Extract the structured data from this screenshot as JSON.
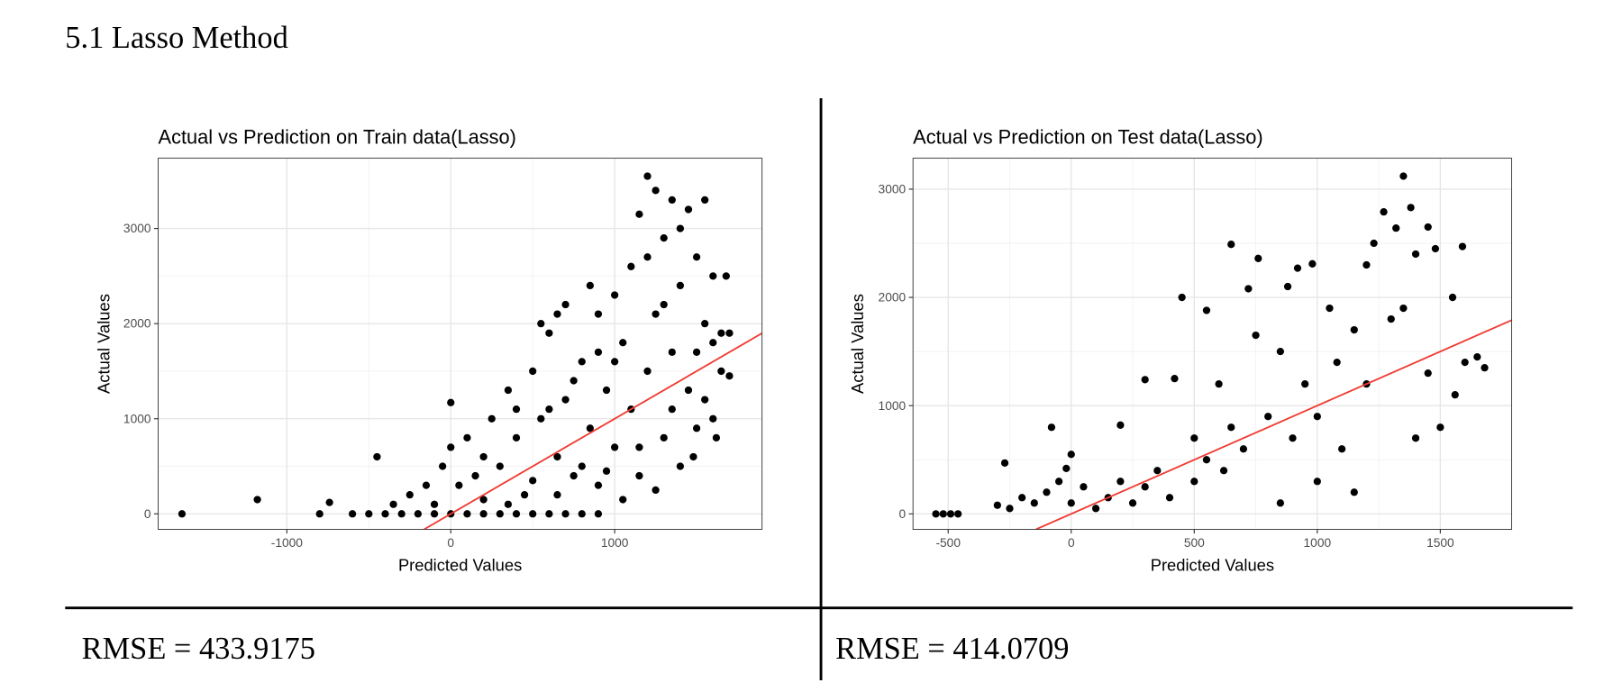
{
  "section_title": "5.1 Lasso Method",
  "chart_data": [
    {
      "type": "scatter",
      "title": "Actual vs Prediction on Train data(Lasso)",
      "x_label": "Predicted Values",
      "y_label": "Actual Values",
      "caption": "RMSE = 433.9175",
      "xlim": [
        -1785,
        1899
      ],
      "ylim": [
        -163,
        3739
      ],
      "xticks": [
        -1000,
        0,
        1000
      ],
      "yticks": [
        0,
        1000,
        2000,
        3000
      ],
      "grid": true,
      "series": [
        {
          "kind": "scatter",
          "color": "#000000",
          "x": [
            -1640,
            -1180,
            -800,
            -740,
            -450,
            0,
            -600,
            -500,
            -400,
            -300,
            -200,
            -100,
            0,
            100,
            200,
            300,
            400,
            500,
            600,
            700,
            800,
            900,
            -350,
            -250,
            -150,
            -50,
            0,
            50,
            100,
            150,
            200,
            250,
            300,
            350,
            400,
            450,
            500,
            550,
            600,
            650,
            700,
            700,
            750,
            800,
            850,
            850,
            900,
            900,
            950,
            1000,
            1000,
            1050,
            1100,
            1100,
            1150,
            1150,
            1200,
            1200,
            1250,
            1250,
            1300,
            1300,
            1350,
            1350,
            1400,
            1400,
            1450,
            1450,
            1500,
            1500,
            1550,
            1550,
            1600,
            1600,
            1650,
            1650,
            1700,
            1700,
            1680,
            1620,
            1480,
            1250,
            1050,
            -100,
            200,
            500,
            800,
            350,
            650,
            950,
            1150,
            1350,
            1550,
            1400,
            1200,
            1000,
            900,
            750,
            600,
            400,
            550,
            650,
            1300,
            1500,
            1600
          ],
          "values": [
            0,
            150,
            0,
            120,
            600,
            1170,
            0,
            0,
            0,
            0,
            0,
            0,
            0,
            0,
            0,
            0,
            0,
            0,
            0,
            0,
            0,
            0,
            100,
            200,
            300,
            500,
            700,
            300,
            800,
            400,
            600,
            1000,
            500,
            1300,
            800,
            200,
            1500,
            1000,
            1900,
            600,
            2200,
            1200,
            400,
            1600,
            2400,
            900,
            2100,
            300,
            1300,
            2300,
            700,
            1800,
            2600,
            1100,
            3150,
            400,
            3550,
            1500,
            3400,
            2100,
            2900,
            800,
            3300,
            1700,
            2400,
            500,
            3200,
            1300,
            2700,
            900,
            3300,
            2000,
            2500,
            1000,
            1900,
            1500,
            1450,
            1900,
            2500,
            800,
            600,
            250,
            150,
            100,
            150,
            350,
            500,
            100,
            200,
            450,
            700,
            1100,
            1200,
            3000,
            2700,
            1600,
            1700,
            1400,
            1100,
            1100,
            2000,
            2100,
            2200,
            1700,
            1800
          ]
        },
        {
          "kind": "line",
          "color": "#f03b32",
          "x": [
            -163,
            1899
          ],
          "values": [
            -163,
            1899
          ]
        }
      ]
    },
    {
      "type": "scatter",
      "title": "Actual vs Prediction on Test data(Lasso)",
      "x_label": "Predicted Values",
      "y_label": "Actual Values",
      "caption": "RMSE = 414.0709",
      "xlim": [
        -643,
        1790
      ],
      "ylim": [
        -143,
        3286
      ],
      "xticks": [
        -500,
        0,
        500,
        1000,
        1500
      ],
      "yticks": [
        0,
        1000,
        2000,
        3000
      ],
      "grid": true,
      "series": [
        {
          "kind": "scatter",
          "color": "#000000",
          "x": [
            -550,
            -520,
            -490,
            -460,
            -300,
            -270,
            -250,
            -200,
            -150,
            -100,
            -80,
            -50,
            0,
            -20,
            0,
            50,
            100,
            150,
            200,
            200,
            250,
            300,
            300,
            350,
            400,
            420,
            450,
            500,
            500,
            550,
            550,
            600,
            620,
            650,
            650,
            700,
            720,
            760,
            750,
            800,
            850,
            880,
            900,
            920,
            950,
            980,
            1000,
            1050,
            1080,
            1100,
            1150,
            1200,
            1200,
            1230,
            1270,
            1300,
            1320,
            1350,
            1350,
            1380,
            1400,
            1400,
            1450,
            1450,
            1480,
            1500,
            1550,
            1560,
            1590,
            1600,
            1650,
            1680,
            1000,
            1150,
            850
          ],
          "values": [
            0,
            0,
            0,
            0,
            80,
            470,
            50,
            150,
            100,
            200,
            800,
            300,
            550,
            420,
            100,
            250,
            50,
            150,
            820,
            300,
            100,
            1240,
            250,
            400,
            150,
            1250,
            2000,
            700,
            300,
            1880,
            500,
            1200,
            400,
            2490,
            800,
            600,
            2080,
            2360,
            1650,
            900,
            1500,
            2100,
            700,
            2270,
            1200,
            2310,
            900,
            1900,
            1400,
            600,
            1700,
            2300,
            1200,
            2500,
            2790,
            1800,
            2640,
            3120,
            1900,
            2830,
            2400,
            700,
            2650,
            1300,
            2450,
            800,
            2000,
            1100,
            2470,
            1400,
            1450,
            1350,
            300,
            200,
            100
          ]
        },
        {
          "kind": "line",
          "color": "#f03b32",
          "x": [
            -143,
            1790
          ],
          "values": [
            -143,
            1790
          ]
        }
      ]
    }
  ]
}
